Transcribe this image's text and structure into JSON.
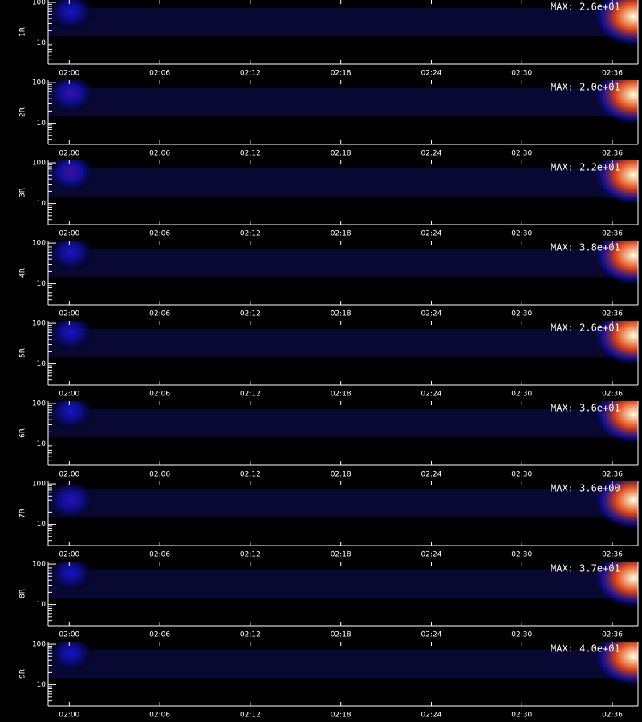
{
  "chart_data": [
    {
      "type": "heatmap",
      "y_label": "1R",
      "annotation": "MAX: 2.6e+01",
      "log_y": true,
      "xlim": [
        118.6,
        157.7
      ],
      "ylim": [
        3,
        115
      ],
      "yticks": [
        10,
        100
      ],
      "xticks": [
        {
          "value": 120,
          "label": "02:00"
        },
        {
          "value": 126,
          "label": "02:06"
        },
        {
          "value": 132,
          "label": "02:12"
        },
        {
          "value": 138,
          "label": "02:18"
        },
        {
          "value": 144,
          "label": "02:24"
        },
        {
          "value": 150,
          "label": "02:30"
        },
        {
          "value": 156,
          "label": "02:36"
        }
      ],
      "blobs": [
        {
          "x": 120.1,
          "y": 60,
          "value": 8
        },
        {
          "x": 157.4,
          "y": 45,
          "value": 26
        }
      ]
    },
    {
      "type": "heatmap",
      "y_label": "2R",
      "annotation": "MAX: 2.0e+01",
      "log_y": true,
      "xlim": [
        118.6,
        157.7
      ],
      "ylim": [
        3,
        115
      ],
      "yticks": [
        10,
        100
      ],
      "xticks": [
        {
          "value": 120,
          "label": "02:00"
        },
        {
          "value": 126,
          "label": "02:06"
        },
        {
          "value": 132,
          "label": "02:12"
        },
        {
          "value": 138,
          "label": "02:18"
        },
        {
          "value": 144,
          "label": "02:24"
        },
        {
          "value": 150,
          "label": "02:30"
        },
        {
          "value": 156,
          "label": "02:36"
        }
      ],
      "blobs": [
        {
          "x": 120.1,
          "y": 55,
          "value": 7
        },
        {
          "x": 157.4,
          "y": 50,
          "value": 20
        }
      ]
    },
    {
      "type": "heatmap",
      "y_label": "3R",
      "annotation": "MAX: 2.2e+01",
      "log_y": true,
      "xlim": [
        118.6,
        157.7
      ],
      "ylim": [
        3,
        115
      ],
      "yticks": [
        10,
        100
      ],
      "xticks": [
        {
          "value": 120,
          "label": "02:00"
        },
        {
          "value": 126,
          "label": "02:06"
        },
        {
          "value": 132,
          "label": "02:12"
        },
        {
          "value": 138,
          "label": "02:18"
        },
        {
          "value": 144,
          "label": "02:24"
        },
        {
          "value": 150,
          "label": "02:30"
        },
        {
          "value": 156,
          "label": "02:36"
        }
      ],
      "blobs": [
        {
          "x": 120.1,
          "y": 60,
          "value": 8
        },
        {
          "x": 157.4,
          "y": 50,
          "value": 22
        }
      ]
    },
    {
      "type": "heatmap",
      "y_label": "4R",
      "annotation": "MAX: 3.8e+01",
      "log_y": true,
      "xlim": [
        118.6,
        157.7
      ],
      "ylim": [
        3,
        115
      ],
      "yticks": [
        10,
        100
      ],
      "xticks": [
        {
          "value": 120,
          "label": "02:00"
        },
        {
          "value": 126,
          "label": "02:06"
        },
        {
          "value": 132,
          "label": "02:12"
        },
        {
          "value": 138,
          "label": "02:18"
        },
        {
          "value": 144,
          "label": "02:24"
        },
        {
          "value": 150,
          "label": "02:30"
        },
        {
          "value": 156,
          "label": "02:36"
        }
      ],
      "blobs": [
        {
          "x": 120.1,
          "y": 60,
          "value": 12
        },
        {
          "x": 157.4,
          "y": 50,
          "value": 38
        }
      ]
    },
    {
      "type": "heatmap",
      "y_label": "5R",
      "annotation": "MAX: 2.6e+01",
      "log_y": true,
      "xlim": [
        118.6,
        157.7
      ],
      "ylim": [
        3,
        115
      ],
      "yticks": [
        10,
        100
      ],
      "xticks": [
        {
          "value": 120,
          "label": "02:00"
        },
        {
          "value": 126,
          "label": "02:06"
        },
        {
          "value": 132,
          "label": "02:12"
        },
        {
          "value": 138,
          "label": "02:18"
        },
        {
          "value": 144,
          "label": "02:24"
        },
        {
          "value": 150,
          "label": "02:30"
        },
        {
          "value": 156,
          "label": "02:36"
        }
      ],
      "blobs": [
        {
          "x": 120.1,
          "y": 60,
          "value": 8
        },
        {
          "x": 157.4,
          "y": 50,
          "value": 26
        }
      ]
    },
    {
      "type": "heatmap",
      "y_label": "6R",
      "annotation": "MAX: 3.6e+01",
      "log_y": true,
      "xlim": [
        118.6,
        157.7
      ],
      "ylim": [
        3,
        115
      ],
      "yticks": [
        10,
        100
      ],
      "xticks": [
        {
          "value": 120,
          "label": "02:00"
        },
        {
          "value": 126,
          "label": "02:06"
        },
        {
          "value": 132,
          "label": "02:12"
        },
        {
          "value": 138,
          "label": "02:18"
        },
        {
          "value": 144,
          "label": "02:24"
        },
        {
          "value": 150,
          "label": "02:30"
        },
        {
          "value": 156,
          "label": "02:36"
        }
      ],
      "blobs": [
        {
          "x": 120.1,
          "y": 65,
          "value": 11
        },
        {
          "x": 157.4,
          "y": 55,
          "value": 36
        }
      ]
    },
    {
      "type": "heatmap",
      "y_label": "7R",
      "annotation": "MAX: 3.6e+00",
      "log_y": true,
      "xlim": [
        118.6,
        157.7
      ],
      "ylim": [
        3,
        115
      ],
      "yticks": [
        10,
        100
      ],
      "xticks": [
        {
          "value": 120,
          "label": "02:00"
        },
        {
          "value": 126,
          "label": "02:06"
        },
        {
          "value": 132,
          "label": "02:12"
        },
        {
          "value": 138,
          "label": "02:18"
        },
        {
          "value": 144,
          "label": "02:24"
        },
        {
          "value": 150,
          "label": "02:30"
        },
        {
          "value": 156,
          "label": "02:36"
        }
      ],
      "blobs": [
        {
          "x": 120.1,
          "y": 40,
          "value": 1.2
        },
        {
          "x": 157.4,
          "y": 40,
          "value": 3.6
        }
      ]
    },
    {
      "type": "heatmap",
      "y_label": "8R",
      "annotation": "MAX: 3.7e+01",
      "log_y": true,
      "xlim": [
        118.6,
        157.7
      ],
      "ylim": [
        3,
        115
      ],
      "yticks": [
        10,
        100
      ],
      "xticks": [
        {
          "value": 120,
          "label": "02:00"
        },
        {
          "value": 126,
          "label": "02:06"
        },
        {
          "value": 132,
          "label": "02:12"
        },
        {
          "value": 138,
          "label": "02:18"
        },
        {
          "value": 144,
          "label": "02:24"
        },
        {
          "value": 150,
          "label": "02:30"
        },
        {
          "value": 156,
          "label": "02:36"
        }
      ],
      "blobs": [
        {
          "x": 120.1,
          "y": 60,
          "value": 11
        },
        {
          "x": 157.4,
          "y": 45,
          "value": 37
        }
      ]
    },
    {
      "type": "heatmap",
      "y_label": "9R",
      "annotation": "MAX: 4.0e+01",
      "log_y": true,
      "xlim": [
        118.6,
        157.7
      ],
      "ylim": [
        3,
        115
      ],
      "yticks": [
        10,
        100
      ],
      "xticks": [
        {
          "value": 120,
          "label": "02:00"
        },
        {
          "value": 126,
          "label": "02:06"
        },
        {
          "value": 132,
          "label": "02:12"
        },
        {
          "value": 138,
          "label": "02:18"
        },
        {
          "value": 144,
          "label": "02:24"
        },
        {
          "value": 150,
          "label": "02:30"
        },
        {
          "value": 156,
          "label": "02:36"
        }
      ],
      "blobs": [
        {
          "x": 120.1,
          "y": 60,
          "value": 12
        },
        {
          "x": 157.4,
          "y": 50,
          "value": 40
        }
      ]
    }
  ]
}
